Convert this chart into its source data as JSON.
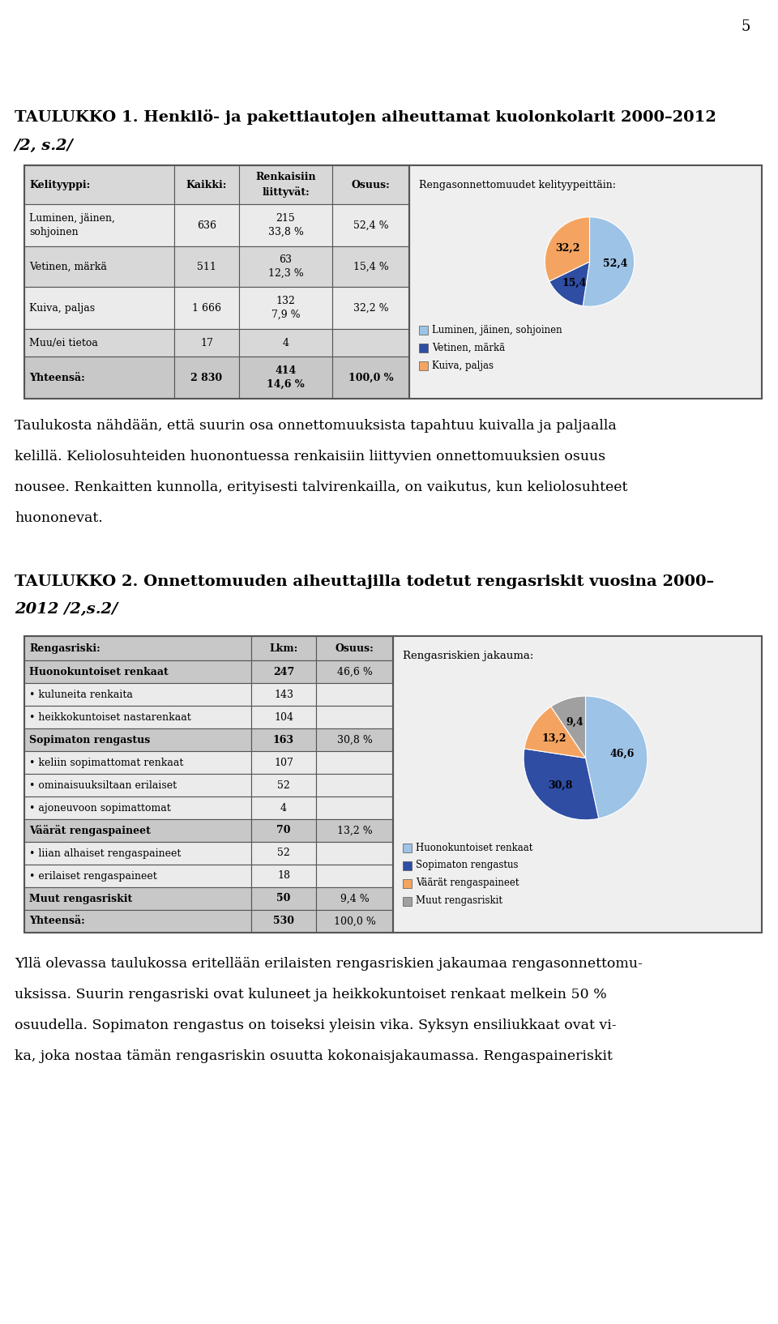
{
  "page_number": "5",
  "title1_bold": "TAULUKKO 1. Henkilö- ja pakettiautojen aiheuttamat kuolonkolarit 2000–2012",
  "title1_italic": "/2, s.2/",
  "table1_headers": [
    "Kelityyppi:",
    "Kaikki:",
    "Renkaisiin\nliittyvät:",
    "Osuus:"
  ],
  "table1_rows": [
    [
      "Luminen, jäinen,\nsohjoinen",
      "636",
      "215\n33,8 %",
      "52,4 %"
    ],
    [
      "Vetinen, märkä",
      "511",
      "63\n12,3 %",
      "15,4 %"
    ],
    [
      "Kuiva, paljas",
      "1 666",
      "132\n7,9 %",
      "32,2 %"
    ],
    [
      "Muu/ei tietoa",
      "17",
      "4",
      ""
    ],
    [
      "Yhteensä:",
      "2 830",
      "414\n14,6 %",
      "100,0 %"
    ]
  ],
  "pie1_title": "Rengasonnettomuudet kelityypeittäin:",
  "pie1_values": [
    52.4,
    15.4,
    32.2
  ],
  "pie1_labels": [
    "52,4",
    "15,4",
    "32,2"
  ],
  "pie1_colors": [
    "#9DC3E6",
    "#2E4DA3",
    "#F4A460"
  ],
  "pie1_legend": [
    "Luminen, jäinen, sohjoinen",
    "Vetinen, märkä",
    "Kuiva, paljas"
  ],
  "pie1_legend_colors": [
    "#9DC3E6",
    "#2E4DA3",
    "#F4A460"
  ],
  "text1_lines": [
    "Taulukosta nähdään, että suurin osa onnettomuuksista tapahtuu kuivalla ja paljaalla",
    "kelillä. Keliolosuhteiden huonontuessa renkaisiin liittyvien onnettomuuksien osuus",
    "nousee. Renkaitten kunnolla, erityisesti talvirenkailla, on vaikutus, kun keliolosuhteet",
    "huononevat."
  ],
  "title2_bold": "TAULUKKO 2. Onnettomuuden aiheuttajilla todetut rengasriskit vuosina 2000–",
  "title2_bold2": "2012 /2,s.2/",
  "table2_headers": [
    "Rengasriski:",
    "Lkm:",
    "Osuus:"
  ],
  "table2_rows": [
    {
      "text": "Huonokuntoiset renkaat",
      "lkm": "247",
      "osuus": "46,6 %",
      "bold": true,
      "category": true
    },
    {
      "text": "• kuluneita renkaita",
      "lkm": "143",
      "osuus": "",
      "bold": false,
      "category": false
    },
    {
      "text": "• heikkokuntoiset nastarenkaat",
      "lkm": "104",
      "osuus": "",
      "bold": false,
      "category": false
    },
    {
      "text": "Sopimaton rengastus",
      "lkm": "163",
      "osuus": "30,8 %",
      "bold": true,
      "category": true
    },
    {
      "text": "• keliin sopimattomat renkaat",
      "lkm": "107",
      "osuus": "",
      "bold": false,
      "category": false
    },
    {
      "text": "• ominaisuuksiltaan erilaiset",
      "lkm": "52",
      "osuus": "",
      "bold": false,
      "category": false
    },
    {
      "text": "• ajoneuvoon sopimattomat",
      "lkm": "4",
      "osuus": "",
      "bold": false,
      "category": false
    },
    {
      "text": "Väärät rengaspaineet",
      "lkm": "70",
      "osuus": "13,2 %",
      "bold": true,
      "category": true
    },
    {
      "text": "• liian alhaiset rengaspaineet",
      "lkm": "52",
      "osuus": "",
      "bold": false,
      "category": false
    },
    {
      "text": "• erilaiset rengaspaineet",
      "lkm": "18",
      "osuus": "",
      "bold": false,
      "category": false
    },
    {
      "text": "Muut rengasriskit",
      "lkm": "50",
      "osuus": "9,4 %",
      "bold": true,
      "category": true
    },
    {
      "text": "Yhteensä:",
      "lkm": "530",
      "osuus": "100,0 %",
      "bold": true,
      "category": true
    }
  ],
  "pie2_title": "Rengasriskien jakauma:",
  "pie2_values": [
    46.6,
    30.8,
    13.2,
    9.4
  ],
  "pie2_labels": [
    "46,6",
    "30,8",
    "13,2",
    "9,4"
  ],
  "pie2_colors": [
    "#9DC3E6",
    "#2E4DA3",
    "#F4A460",
    "#A0A0A0"
  ],
  "pie2_legend": [
    "Huonokuntoiset renkaat",
    "Sopimaton rengastus",
    "Väärät rengaspaineet",
    "Muut rengasriskit"
  ],
  "pie2_legend_colors": [
    "#9DC3E6",
    "#2E4DA3",
    "#F4A460",
    "#A0A0A0"
  ],
  "text2_lines": [
    "Yllä olevassa taulukossa eritellään erilaisten rengasriskien jakaumaa rengasonnettomu-",
    "uksissa. Suurin rengasriski ovat kuluneet ja heikkokuntoiset renkaat melkein 50 %",
    "osuudella. Sopimaton rengastus on toiseksi yleisin vika. Syksyn ensiliukkaat ovat vi-",
    "ka, joka nostaa tämän rengasriskin osuutta kokonaisjakaumassa. Rengaspaineriskit"
  ],
  "header_bg": "#C8C8C8",
  "row_bg_dark": "#D8D8D8",
  "row_bg_light": "#EBEBEB",
  "table_border_color": "#555555",
  "outer_border_color": "#555555"
}
